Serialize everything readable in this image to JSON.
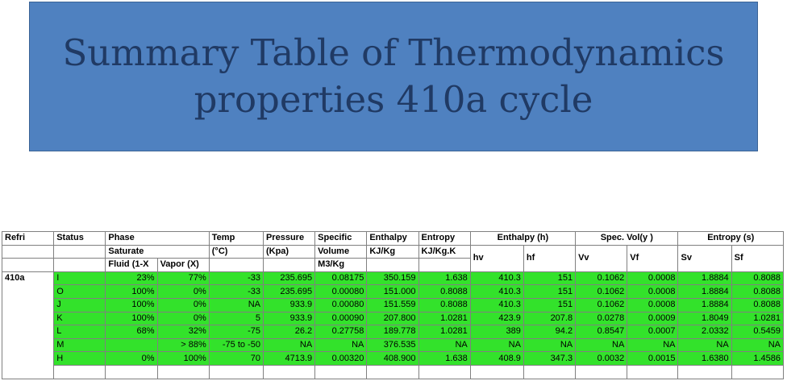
{
  "title": {
    "line1": "Summary Table of Thermodynamics",
    "line2": "properties 410a cycle"
  },
  "colors": {
    "title_bg": "#4f81c0",
    "title_text": "#203a64",
    "row_highlight": "#33e22b"
  },
  "headers": {
    "refri": "Refri",
    "status": "Status",
    "phase": "Phase",
    "saturate": "Saturate",
    "fluid": "Fluid (1-X",
    "vapor": "Vapor (X)",
    "temp": "Temp",
    "temp_unit": "(°C)",
    "pressure": "Pressure",
    "pressure_unit": "(Kpa)",
    "specific": "Specific",
    "volume": "Volume",
    "volume_unit": "M3/Kg",
    "enthalpy": "Enthalpy",
    "enthalpy_unit": "KJ/Kg",
    "entropy": "Entropy",
    "entropy_unit": "KJ/Kg.K",
    "enthalpy_h": "Enthalpy (h)",
    "spec_vol": "Spec. Vol(y )",
    "entropy_s": "Entropy (s)",
    "hv": "hv",
    "hf": "hf",
    "vv": "Vv",
    "vf": "Vf",
    "sv": "Sv",
    "sf": "Sf"
  },
  "refrigerant": "410a",
  "rows": [
    {
      "status": "I",
      "fluid": "23%",
      "vapor": "77%",
      "temp": "-33",
      "pressure": "235.695",
      "volume": "0.08175",
      "enthalpy": "350.159",
      "entropy": "1.638",
      "hv": "410.3",
      "hf": "151",
      "vv": "0.1062",
      "vf": "0.0008",
      "sv": "1.8884",
      "sf": "0.8088"
    },
    {
      "status": "O",
      "fluid": "100%",
      "vapor": "0%",
      "temp": "-33",
      "pressure": "235.695",
      "volume": "0.00080",
      "enthalpy": "151.000",
      "entropy": "0.8088",
      "hv": "410.3",
      "hf": "151",
      "vv": "0.1062",
      "vf": "0.0008",
      "sv": "1.8884",
      "sf": "0.8088"
    },
    {
      "status": "J",
      "fluid": "100%",
      "vapor": "0%",
      "temp": "NA",
      "pressure": "933.9",
      "volume": "0.00080",
      "enthalpy": "151.559",
      "entropy": "0.8088",
      "hv": "410.3",
      "hf": "151",
      "vv": "0.1062",
      "vf": "0.0008",
      "sv": "1.8884",
      "sf": "0.8088"
    },
    {
      "status": "K",
      "fluid": "100%",
      "vapor": "0%",
      "temp": "5",
      "pressure": "933.9",
      "volume": "0.00090",
      "enthalpy": "207.800",
      "entropy": "1.0281",
      "hv": "423.9",
      "hf": "207.8",
      "vv": "0.0278",
      "vf": "0.0009",
      "sv": "1.8049",
      "sf": "1.0281"
    },
    {
      "status": "L",
      "fluid": "68%",
      "vapor": "32%",
      "temp": "-75",
      "pressure": "26.2",
      "volume": "0.27758",
      "enthalpy": "189.778",
      "entropy": "1.0281",
      "hv": "389",
      "hf": "94.2",
      "vv": "0.8547",
      "vf": "0.0007",
      "sv": "2.0332",
      "sf": "0.5459"
    },
    {
      "status": "M",
      "fluid": "",
      "vapor": "> 88%",
      "temp": "-75 to -50",
      "pressure": "NA",
      "volume": "NA",
      "enthalpy": "376.535",
      "entropy": "NA",
      "hv": "NA",
      "hf": "NA",
      "vv": "NA",
      "vf": "NA",
      "sv": "NA",
      "sf": "NA"
    },
    {
      "status": "H",
      "fluid": "0%",
      "vapor": "100%",
      "temp": "70",
      "pressure": "4713.9",
      "volume": "0.00320",
      "enthalpy": "408.900",
      "entropy": "1.638",
      "hv": "408.9",
      "hf": "347.3",
      "vv": "0.0032",
      "vf": "0.0015",
      "sv": "1.6380",
      "sf": "1.4586"
    }
  ]
}
